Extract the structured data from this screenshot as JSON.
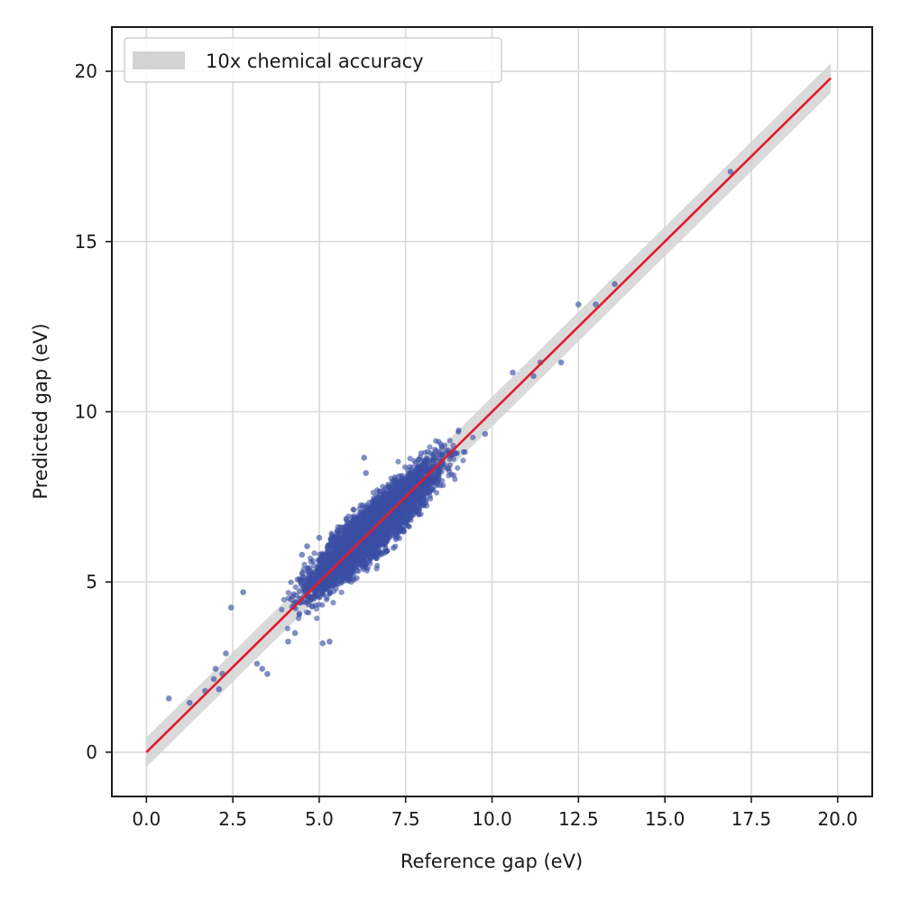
{
  "chart_data": {
    "type": "scatter",
    "title": "",
    "xlabel": "Reference gap (eV)",
    "ylabel": "Predicted gap (eV)",
    "xlim": [
      -1.0,
      21.0
    ],
    "ylim": [
      -1.3,
      21.3
    ],
    "grid": true,
    "legend_position": "top-left",
    "x_ticks": [
      0.0,
      2.5,
      5.0,
      7.5,
      10.0,
      12.5,
      15.0,
      17.5,
      20.0
    ],
    "x_tick_labels": [
      "0.0",
      "2.5",
      "5.0",
      "7.5",
      "10.0",
      "12.5",
      "15.0",
      "17.5",
      "20.0"
    ],
    "y_ticks": [
      0,
      5,
      10,
      15,
      20
    ],
    "y_tick_labels": [
      "0",
      "5",
      "10",
      "15",
      "20"
    ],
    "series": [
      {
        "kind": "scatter",
        "color": "#3a4fa3",
        "description_cloud": {
          "x_range": [
            2.7,
            10.6
          ],
          "center_line_slope": 1.0,
          "dense_spread": 0.45
        },
        "outliers": [
          [
            0.65,
            1.58
          ],
          [
            1.25,
            1.45
          ],
          [
            1.7,
            1.8
          ],
          [
            1.95,
            2.15
          ],
          [
            2.1,
            1.85
          ],
          [
            2.0,
            2.45
          ],
          [
            2.2,
            2.3
          ],
          [
            2.3,
            2.9
          ],
          [
            2.45,
            4.25
          ],
          [
            2.8,
            4.7
          ],
          [
            3.2,
            2.6
          ],
          [
            3.5,
            2.3
          ],
          [
            3.35,
            2.45
          ],
          [
            4.1,
            3.25
          ],
          [
            4.3,
            3.5
          ],
          [
            5.1,
            3.2
          ],
          [
            5.3,
            3.25
          ],
          [
            4.5,
            5.8
          ],
          [
            5.0,
            6.3
          ],
          [
            4.65,
            6.05
          ],
          [
            6.3,
            8.65
          ],
          [
            6.35,
            8.2
          ],
          [
            7.15,
            6.0
          ],
          [
            7.45,
            6.5
          ],
          [
            9.8,
            9.35
          ],
          [
            10.6,
            11.15
          ],
          [
            11.4,
            11.45
          ],
          [
            12.0,
            11.45
          ],
          [
            11.2,
            11.05
          ],
          [
            12.5,
            13.15
          ],
          [
            13.0,
            13.15
          ],
          [
            13.55,
            13.75
          ],
          [
            16.9,
            17.05
          ]
        ]
      },
      {
        "kind": "line",
        "color": "#e31a2c",
        "x": [
          0.0,
          19.8
        ],
        "y": [
          0.0,
          19.8
        ]
      }
    ],
    "band": {
      "name": "10x chemical accuracy",
      "color": "#d3d3d3",
      "half_width": 0.434,
      "x": [
        0.0,
        19.8
      ]
    }
  }
}
